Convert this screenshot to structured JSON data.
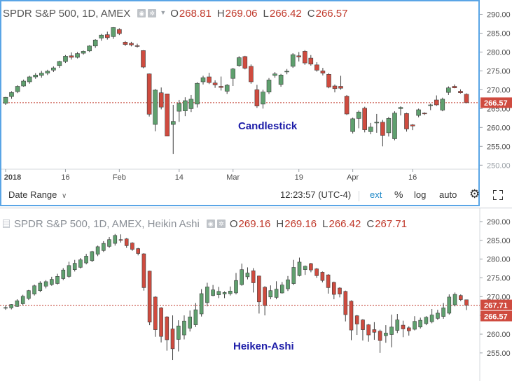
{
  "top": {
    "ticker": "SPDR S&P 500, 1D, AMEX",
    "ohlc": [
      {
        "prefix": "O",
        "value": "268.81"
      },
      {
        "prefix": "H",
        "value": "269.06"
      },
      {
        "prefix": "L",
        "value": "266.42"
      },
      {
        "prefix": "C",
        "value": "266.57"
      }
    ],
    "ohlc_color": "#c0392b",
    "price_tag": "266.57"
  },
  "bottom": {
    "ticker": "SPDR S&P 500, 1D, AMEX, Heikin Ashi",
    "ohlc": [
      {
        "prefix": "O",
        "value": "269.16"
      },
      {
        "prefix": "H",
        "value": "269.16"
      },
      {
        "prefix": "L",
        "value": "266.42"
      },
      {
        "prefix": "C",
        "value": "267.71"
      }
    ],
    "ohlc_color": "#c0392b",
    "price_tags": [
      "267.71",
      "266.57"
    ]
  },
  "toolbar": {
    "date_range": "Date Range",
    "time": "12:23:57 (UTC-4)",
    "ext": "ext",
    "percent": "%",
    "log": "log",
    "auto": "auto"
  },
  "colors": {
    "up": "#5fa06e",
    "down": "#cf4b3f",
    "price_line": "#c0392b",
    "label": "#1c1ca8",
    "accent": "#1e88c7"
  },
  "chart_data": [
    {
      "type": "candlestick",
      "title": "Candlestick",
      "y_ticks": [
        "290.00",
        "285.00",
        "280.00",
        "275.00",
        "270.00",
        "265.00",
        "260.00",
        "255.00",
        "250.00"
      ],
      "x_ticks": [
        "2018",
        "16",
        "Feb",
        "14",
        "Mar",
        "19",
        "Apr",
        "16"
      ],
      "ylim": [
        249.5,
        291.2
      ],
      "last_price": 266.57,
      "grid": false,
      "candles": [
        {
          "o": 266.4,
          "h": 268.1,
          "l": 266.0,
          "c": 268.0
        },
        {
          "o": 268.2,
          "h": 269.6,
          "l": 267.6,
          "c": 269.3
        },
        {
          "o": 269.5,
          "h": 271.2,
          "l": 269.1,
          "c": 270.9
        },
        {
          "o": 271.0,
          "h": 272.7,
          "l": 270.8,
          "c": 272.3
        },
        {
          "o": 272.1,
          "h": 273.7,
          "l": 271.6,
          "c": 273.4
        },
        {
          "o": 273.4,
          "h": 274.4,
          "l": 272.9,
          "c": 273.9
        },
        {
          "o": 273.8,
          "h": 275.0,
          "l": 273.2,
          "c": 274.4
        },
        {
          "o": 274.4,
          "h": 275.3,
          "l": 273.9,
          "c": 274.9
        },
        {
          "o": 275.2,
          "h": 276.2,
          "l": 274.7,
          "c": 275.8
        },
        {
          "o": 276.4,
          "h": 277.7,
          "l": 275.8,
          "c": 277.5
        },
        {
          "o": 277.5,
          "h": 279.2,
          "l": 277.1,
          "c": 278.9
        },
        {
          "o": 279.0,
          "h": 279.9,
          "l": 278.0,
          "c": 278.6
        },
        {
          "o": 278.6,
          "h": 280.0,
          "l": 278.3,
          "c": 279.6
        },
        {
          "o": 279.7,
          "h": 280.4,
          "l": 279.3,
          "c": 280.2
        },
        {
          "o": 280.3,
          "h": 281.8,
          "l": 280.0,
          "c": 281.6
        },
        {
          "o": 281.6,
          "h": 283.4,
          "l": 281.1,
          "c": 283.2
        },
        {
          "o": 283.7,
          "h": 284.8,
          "l": 283.0,
          "c": 284.5
        },
        {
          "o": 284.6,
          "h": 285.4,
          "l": 283.3,
          "c": 283.8
        },
        {
          "o": 284.1,
          "h": 286.6,
          "l": 283.5,
          "c": 286.5
        },
        {
          "o": 286.0,
          "h": 286.3,
          "l": 284.5,
          "c": 284.9
        },
        {
          "o": 282.6,
          "h": 282.9,
          "l": 281.6,
          "c": 282.0
        },
        {
          "o": 282.3,
          "h": 282.7,
          "l": 281.5,
          "c": 281.9
        },
        {
          "o": 281.7,
          "h": 282.2,
          "l": 281.2,
          "c": 281.5
        },
        {
          "o": 280.4,
          "h": 280.5,
          "l": 275.7,
          "c": 276.0
        },
        {
          "o": 274.2,
          "h": 274.3,
          "l": 262.9,
          "c": 263.5
        },
        {
          "o": 260.8,
          "h": 270.2,
          "l": 259.0,
          "c": 269.9
        },
        {
          "o": 269.2,
          "h": 270.6,
          "l": 264.8,
          "c": 265.4
        },
        {
          "o": 268.9,
          "h": 268.9,
          "l": 257.8,
          "c": 257.7
        },
        {
          "o": 260.8,
          "h": 266.0,
          "l": 253.0,
          "c": 261.6
        },
        {
          "o": 264.3,
          "h": 267.3,
          "l": 261.5,
          "c": 266.4
        },
        {
          "o": 264.4,
          "h": 268.0,
          "l": 263.0,
          "c": 267.1
        },
        {
          "o": 265.0,
          "h": 268.6,
          "l": 264.1,
          "c": 267.5
        },
        {
          "o": 266.2,
          "h": 272.0,
          "l": 265.3,
          "c": 271.7
        },
        {
          "o": 272.1,
          "h": 273.7,
          "l": 271.4,
          "c": 273.2
        },
        {
          "o": 273.4,
          "h": 274.5,
          "l": 271.5,
          "c": 271.9
        },
        {
          "o": 271.8,
          "h": 272.5,
          "l": 270.5,
          "c": 271.3
        },
        {
          "o": 270.9,
          "h": 273.5,
          "l": 269.8,
          "c": 270.6
        },
        {
          "o": 269.6,
          "h": 271.5,
          "l": 268.9,
          "c": 271.2
        },
        {
          "o": 273.0,
          "h": 275.8,
          "l": 271.0,
          "c": 275.5
        },
        {
          "o": 276.4,
          "h": 278.9,
          "l": 276.1,
          "c": 278.5
        },
        {
          "o": 278.8,
          "h": 279.0,
          "l": 275.4,
          "c": 275.7
        },
        {
          "o": 276.2,
          "h": 276.7,
          "l": 271.6,
          "c": 272.1
        },
        {
          "o": 270.0,
          "h": 271.3,
          "l": 265.2,
          "c": 265.7
        },
        {
          "o": 266.2,
          "h": 270.0,
          "l": 265.0,
          "c": 269.4
        },
        {
          "o": 269.4,
          "h": 273.1,
          "l": 268.9,
          "c": 272.6
        },
        {
          "o": 273.8,
          "h": 274.7,
          "l": 273.2,
          "c": 274.2
        },
        {
          "o": 271.4,
          "h": 274.2,
          "l": 270.8,
          "c": 273.9
        },
        {
          "o": 274.9,
          "h": 275.5,
          "l": 274.1,
          "c": 274.9
        },
        {
          "o": 276.2,
          "h": 279.7,
          "l": 275.8,
          "c": 279.3
        },
        {
          "o": 279.0,
          "h": 280.0,
          "l": 277.5,
          "c": 278.7
        },
        {
          "o": 280.2,
          "h": 280.5,
          "l": 276.6,
          "c": 277.1
        },
        {
          "o": 278.4,
          "h": 279.2,
          "l": 276.4,
          "c": 276.8
        },
        {
          "o": 276.6,
          "h": 277.3,
          "l": 274.8,
          "c": 275.2
        },
        {
          "o": 275.0,
          "h": 275.8,
          "l": 273.8,
          "c": 274.4
        },
        {
          "o": 274.1,
          "h": 274.4,
          "l": 270.4,
          "c": 270.7
        },
        {
          "o": 271.0,
          "h": 271.4,
          "l": 269.3,
          "c": 270.3
        },
        {
          "o": 270.9,
          "h": 273.7,
          "l": 270.0,
          "c": 270.4
        },
        {
          "o": 268.3,
          "h": 268.6,
          "l": 263.3,
          "c": 263.6
        },
        {
          "o": 258.9,
          "h": 262.6,
          "l": 258.4,
          "c": 262.3
        },
        {
          "o": 262.4,
          "h": 264.5,
          "l": 259.8,
          "c": 264.1
        },
        {
          "o": 265.1,
          "h": 265.5,
          "l": 258.7,
          "c": 259.4
        },
        {
          "o": 258.9,
          "h": 261.2,
          "l": 258.2,
          "c": 260.1
        },
        {
          "o": 261.2,
          "h": 263.6,
          "l": 258.6,
          "c": 261.4
        },
        {
          "o": 261.4,
          "h": 262.0,
          "l": 255.0,
          "c": 257.9
        },
        {
          "o": 258.6,
          "h": 262.8,
          "l": 257.6,
          "c": 262.4
        },
        {
          "o": 257.0,
          "h": 264.3,
          "l": 256.6,
          "c": 263.8
        },
        {
          "o": 265.0,
          "h": 265.6,
          "l": 263.2,
          "c": 265.3
        },
        {
          "o": 263.7,
          "h": 263.9,
          "l": 258.9,
          "c": 259.6
        },
        {
          "o": 260.7,
          "h": 260.9,
          "l": 259.3,
          "c": 260.4
        },
        {
          "o": 263.2,
          "h": 265.0,
          "l": 262.7,
          "c": 264.7
        },
        {
          "o": 263.8,
          "h": 264.0,
          "l": 263.3,
          "c": 263.7
        },
        {
          "o": 265.8,
          "h": 266.3,
          "l": 264.6,
          "c": 266.0
        },
        {
          "o": 267.3,
          "h": 268.5,
          "l": 265.7,
          "c": 266.0
        },
        {
          "o": 264.6,
          "h": 267.9,
          "l": 264.3,
          "c": 267.5
        },
        {
          "o": 269.3,
          "h": 270.9,
          "l": 268.6,
          "c": 270.5
        },
        {
          "o": 270.9,
          "h": 271.4,
          "l": 270.4,
          "c": 270.5
        },
        {
          "o": 269.6,
          "h": 270.1,
          "l": 269.0,
          "c": 269.2
        },
        {
          "o": 268.81,
          "h": 269.06,
          "l": 266.42,
          "c": 266.57
        }
      ]
    },
    {
      "type": "heikin-ashi",
      "title": "Heiken-Ashi",
      "y_ticks": [
        "290.00",
        "285.00",
        "280.00",
        "275.00",
        "270.00",
        "265.00",
        "260.00",
        "255.00"
      ],
      "ylim": [
        251.8,
        291.3
      ],
      "price_lines": [
        267.71,
        266.57
      ],
      "grid": false,
      "candles": [
        {
          "o": 267.0,
          "h": 267.7,
          "l": 266.5,
          "c": 267.1
        },
        {
          "o": 267.0,
          "h": 268.0,
          "l": 266.6,
          "c": 267.9
        },
        {
          "o": 267.4,
          "h": 269.3,
          "l": 267.3,
          "c": 268.9
        },
        {
          "o": 268.1,
          "h": 270.5,
          "l": 267.7,
          "c": 270.1
        },
        {
          "o": 269.5,
          "h": 271.8,
          "l": 269.1,
          "c": 271.6
        },
        {
          "o": 270.7,
          "h": 273.2,
          "l": 270.3,
          "c": 272.9
        },
        {
          "o": 271.6,
          "h": 274.1,
          "l": 271.2,
          "c": 273.6
        },
        {
          "o": 272.8,
          "h": 274.4,
          "l": 272.2,
          "c": 274.0
        },
        {
          "o": 273.2,
          "h": 275.3,
          "l": 272.9,
          "c": 274.6
        },
        {
          "o": 273.5,
          "h": 276.1,
          "l": 273.2,
          "c": 275.4
        },
        {
          "o": 274.8,
          "h": 277.6,
          "l": 274.4,
          "c": 277.1
        },
        {
          "o": 275.4,
          "h": 279.3,
          "l": 275.0,
          "c": 278.3
        },
        {
          "o": 277.2,
          "h": 279.8,
          "l": 276.7,
          "c": 278.9
        },
        {
          "o": 277.8,
          "h": 280.3,
          "l": 277.5,
          "c": 279.8
        },
        {
          "o": 279.0,
          "h": 281.4,
          "l": 278.6,
          "c": 280.8
        },
        {
          "o": 279.6,
          "h": 282.2,
          "l": 279.2,
          "c": 282.0
        },
        {
          "o": 281.3,
          "h": 283.6,
          "l": 280.8,
          "c": 283.3
        },
        {
          "o": 282.3,
          "h": 284.8,
          "l": 281.9,
          "c": 284.2
        },
        {
          "o": 283.4,
          "h": 285.9,
          "l": 283.0,
          "c": 285.2
        },
        {
          "o": 284.2,
          "h": 286.7,
          "l": 283.6,
          "c": 286.3
        },
        {
          "o": 285.2,
          "h": 286.6,
          "l": 284.4,
          "c": 285.0
        },
        {
          "o": 285.4,
          "h": 285.6,
          "l": 283.0,
          "c": 283.6
        },
        {
          "o": 284.3,
          "h": 284.5,
          "l": 282.2,
          "c": 282.6
        },
        {
          "o": 282.8,
          "h": 283.0,
          "l": 281.0,
          "c": 281.5
        },
        {
          "o": 281.4,
          "h": 281.6,
          "l": 271.6,
          "c": 272.4
        },
        {
          "o": 276.8,
          "h": 276.9,
          "l": 262.4,
          "c": 263.2
        },
        {
          "o": 269.9,
          "h": 270.1,
          "l": 259.3,
          "c": 261.2
        },
        {
          "o": 267.0,
          "h": 267.2,
          "l": 257.8,
          "c": 259.4
        },
        {
          "o": 264.6,
          "h": 264.8,
          "l": 255.6,
          "c": 258.5
        },
        {
          "o": 261.4,
          "h": 265.0,
          "l": 253.1,
          "c": 256.1
        },
        {
          "o": 258.6,
          "h": 263.7,
          "l": 255.4,
          "c": 262.2
        },
        {
          "o": 259.8,
          "h": 265.0,
          "l": 258.6,
          "c": 263.5
        },
        {
          "o": 261.6,
          "h": 266.3,
          "l": 260.7,
          "c": 264.6
        },
        {
          "o": 262.5,
          "h": 268.3,
          "l": 261.9,
          "c": 266.5
        },
        {
          "o": 265.4,
          "h": 272.0,
          "l": 264.7,
          "c": 270.8
        },
        {
          "o": 268.4,
          "h": 273.7,
          "l": 267.4,
          "c": 272.6
        },
        {
          "o": 270.3,
          "h": 273.1,
          "l": 270.1,
          "c": 271.8
        },
        {
          "o": 270.5,
          "h": 272.6,
          "l": 269.6,
          "c": 271.4
        },
        {
          "o": 270.7,
          "h": 271.4,
          "l": 269.6,
          "c": 271.1
        },
        {
          "o": 270.8,
          "h": 272.7,
          "l": 270.3,
          "c": 271.5
        },
        {
          "o": 271.0,
          "h": 276.3,
          "l": 270.6,
          "c": 274.3
        },
        {
          "o": 273.2,
          "h": 278.8,
          "l": 272.9,
          "c": 277.2
        },
        {
          "o": 275.3,
          "h": 277.8,
          "l": 274.6,
          "c": 276.3
        },
        {
          "o": 276.9,
          "h": 277.6,
          "l": 271.1,
          "c": 273.7
        },
        {
          "o": 275.5,
          "h": 275.6,
          "l": 265.5,
          "c": 268.6
        },
        {
          "o": 272.5,
          "h": 272.8,
          "l": 265.0,
          "c": 267.6
        },
        {
          "o": 269.9,
          "h": 273.0,
          "l": 269.3,
          "c": 271.6
        },
        {
          "o": 269.8,
          "h": 274.1,
          "l": 269.3,
          "c": 272.0
        },
        {
          "o": 271.0,
          "h": 273.9,
          "l": 270.8,
          "c": 273.1
        },
        {
          "o": 272.1,
          "h": 275.5,
          "l": 271.5,
          "c": 274.5
        },
        {
          "o": 273.5,
          "h": 279.8,
          "l": 273.1,
          "c": 277.8
        },
        {
          "o": 275.6,
          "h": 280.4,
          "l": 275.4,
          "c": 279.2
        },
        {
          "o": 277.2,
          "h": 278.3,
          "l": 275.8,
          "c": 278.1
        },
        {
          "o": 278.8,
          "h": 279.0,
          "l": 276.5,
          "c": 277.1
        },
        {
          "o": 277.4,
          "h": 277.6,
          "l": 275.0,
          "c": 275.6
        },
        {
          "o": 276.5,
          "h": 276.7,
          "l": 273.8,
          "c": 274.3
        },
        {
          "o": 275.8,
          "h": 276.0,
          "l": 270.8,
          "c": 272.4
        },
        {
          "o": 273.8,
          "h": 274.0,
          "l": 269.3,
          "c": 270.6
        },
        {
          "o": 272.3,
          "h": 272.5,
          "l": 269.8,
          "c": 270.7
        },
        {
          "o": 271.4,
          "h": 271.6,
          "l": 263.4,
          "c": 265.2
        },
        {
          "o": 268.8,
          "h": 269.0,
          "l": 258.4,
          "c": 261.1
        },
        {
          "o": 264.9,
          "h": 265.1,
          "l": 259.8,
          "c": 262.7
        },
        {
          "o": 263.8,
          "h": 264.0,
          "l": 258.3,
          "c": 261.2
        },
        {
          "o": 262.5,
          "h": 262.7,
          "l": 258.0,
          "c": 259.8
        },
        {
          "o": 261.2,
          "h": 263.2,
          "l": 258.5,
          "c": 260.5
        },
        {
          "o": 260.8,
          "h": 261.2,
          "l": 255.0,
          "c": 258.3
        },
        {
          "o": 259.6,
          "h": 262.4,
          "l": 257.7,
          "c": 260.3
        },
        {
          "o": 259.9,
          "h": 265.2,
          "l": 256.5,
          "c": 261.9
        },
        {
          "o": 261.0,
          "h": 265.4,
          "l": 260.3,
          "c": 263.8
        },
        {
          "o": 262.4,
          "h": 263.6,
          "l": 259.2,
          "c": 261.4
        },
        {
          "o": 261.7,
          "h": 262.1,
          "l": 259.6,
          "c": 260.9
        },
        {
          "o": 261.3,
          "h": 264.8,
          "l": 261.0,
          "c": 263.4
        },
        {
          "o": 261.9,
          "h": 264.4,
          "l": 261.5,
          "c": 263.7
        },
        {
          "o": 262.8,
          "h": 264.8,
          "l": 262.4,
          "c": 264.5
        },
        {
          "o": 263.3,
          "h": 266.7,
          "l": 262.9,
          "c": 265.1
        },
        {
          "o": 264.2,
          "h": 266.5,
          "l": 263.8,
          "c": 265.6
        },
        {
          "o": 264.7,
          "h": 268.3,
          "l": 264.1,
          "c": 267.0
        },
        {
          "o": 265.6,
          "h": 270.6,
          "l": 265.2,
          "c": 269.9
        },
        {
          "o": 267.8,
          "h": 271.1,
          "l": 267.4,
          "c": 270.6
        },
        {
          "o": 270.3,
          "h": 270.6,
          "l": 268.8,
          "c": 269.2
        },
        {
          "o": 269.16,
          "h": 269.16,
          "l": 266.42,
          "c": 267.71
        }
      ]
    }
  ]
}
